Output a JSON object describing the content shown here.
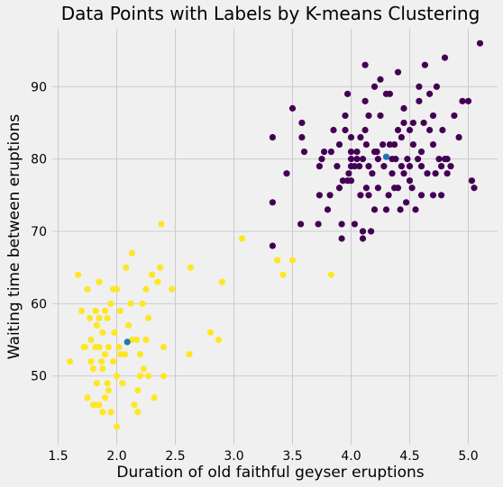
{
  "chart_data": {
    "type": "scatter",
    "title": "Data Points with Labels by K-means Clustering",
    "xlabel": "Duration of old faithful geyser eruptions",
    "ylabel": "Waiting time between eruptions",
    "xlim": [
      1.45,
      5.25
    ],
    "ylim": [
      40.5,
      98
    ],
    "xticks": [
      1.5,
      2.0,
      2.5,
      3.0,
      3.5,
      4.0,
      4.5,
      5.0
    ],
    "xtick_labels": [
      "1.5",
      "2.0",
      "2.5",
      "3.0",
      "3.5",
      "4.0",
      "4.5",
      "5.0"
    ],
    "yticks": [
      50,
      60,
      70,
      80,
      90
    ],
    "ytick_labels": [
      "50",
      "60",
      "70",
      "80",
      "90"
    ],
    "grid": true,
    "series": [
      {
        "color": "#440154",
        "points": [
          [
            3.33,
            83
          ],
          [
            3.33,
            74
          ],
          [
            3.33,
            68
          ],
          [
            3.45,
            78
          ],
          [
            3.5,
            87
          ],
          [
            3.57,
            71
          ],
          [
            3.58,
            83
          ],
          [
            3.58,
            85
          ],
          [
            3.6,
            81
          ],
          [
            3.72,
            71
          ],
          [
            3.73,
            75
          ],
          [
            3.73,
            79
          ],
          [
            3.75,
            80
          ],
          [
            3.77,
            81
          ],
          [
            3.8,
            73
          ],
          [
            3.82,
            75
          ],
          [
            3.83,
            81
          ],
          [
            3.85,
            84
          ],
          [
            3.88,
            79
          ],
          [
            3.9,
            76
          ],
          [
            3.92,
            69
          ],
          [
            3.92,
            71
          ],
          [
            3.93,
            77
          ],
          [
            3.95,
            84
          ],
          [
            3.97,
            89
          ],
          [
            3.98,
            78
          ],
          [
            4.0,
            80
          ],
          [
            4.0,
            77
          ],
          [
            4.0,
            79
          ],
          [
            4.0,
            83
          ],
          [
            4.03,
            71
          ],
          [
            4.03,
            79
          ],
          [
            4.05,
            80
          ],
          [
            4.08,
            75
          ],
          [
            4.1,
            69
          ],
          [
            4.1,
            70
          ],
          [
            4.1,
            80
          ],
          [
            4.12,
            84
          ],
          [
            4.12,
            88
          ],
          [
            4.12,
            93
          ],
          [
            4.13,
            76
          ],
          [
            4.15,
            75
          ],
          [
            4.15,
            86
          ],
          [
            4.17,
            70
          ],
          [
            4.18,
            78
          ],
          [
            4.2,
            90
          ],
          [
            4.2,
            73
          ],
          [
            4.22,
            81
          ],
          [
            4.23,
            76
          ],
          [
            4.25,
            86
          ],
          [
            4.27,
            82
          ],
          [
            4.28,
            79
          ],
          [
            4.3,
            73
          ],
          [
            4.32,
            75
          ],
          [
            4.33,
            82
          ],
          [
            4.35,
            80
          ],
          [
            4.35,
            78
          ],
          [
            4.37,
            82
          ],
          [
            4.38,
            80
          ],
          [
            4.4,
            76
          ],
          [
            4.4,
            84
          ],
          [
            4.42,
            73
          ],
          [
            4.43,
            79
          ],
          [
            4.43,
            83
          ],
          [
            4.45,
            78
          ],
          [
            4.45,
            85
          ],
          [
            4.47,
            74
          ],
          [
            4.48,
            80
          ],
          [
            4.5,
            79
          ],
          [
            4.5,
            84
          ],
          [
            4.52,
            76
          ],
          [
            4.53,
            82
          ],
          [
            4.55,
            73
          ],
          [
            4.57,
            80
          ],
          [
            4.58,
            88
          ],
          [
            4.6,
            75
          ],
          [
            4.6,
            81
          ],
          [
            4.62,
            85
          ],
          [
            4.65,
            78
          ],
          [
            4.67,
            84
          ],
          [
            4.7,
            75
          ],
          [
            4.7,
            82
          ],
          [
            4.72,
            78
          ],
          [
            4.73,
            90
          ],
          [
            4.75,
            80
          ],
          [
            4.77,
            75
          ],
          [
            4.78,
            84
          ],
          [
            4.8,
            80
          ],
          [
            4.8,
            94
          ],
          [
            4.82,
            80
          ],
          [
            4.85,
            79
          ],
          [
            4.88,
            86
          ],
          [
            4.92,
            83
          ],
          [
            4.95,
            88
          ],
          [
            5.0,
            88
          ],
          [
            5.03,
            77
          ],
          [
            5.05,
            76
          ],
          [
            5.1,
            96
          ],
          [
            4.25,
            91
          ],
          [
            4.2,
            81
          ],
          [
            4.07,
            79
          ],
          [
            4.05,
            81
          ],
          [
            3.97,
            77
          ],
          [
            3.9,
            82
          ],
          [
            4.15,
            79
          ],
          [
            4.33,
            89
          ],
          [
            4.37,
            76
          ],
          [
            4.53,
            85
          ],
          [
            4.58,
            90
          ],
          [
            4.67,
            89
          ],
          [
            4.77,
            79
          ],
          [
            4.63,
            93
          ],
          [
            4.4,
            92
          ],
          [
            4.08,
            83
          ],
          [
            3.95,
            86
          ],
          [
            4.23,
            80
          ],
          [
            4.6,
            79
          ],
          [
            4.7,
            86
          ],
          [
            4.82,
            78
          ],
          [
            4.5,
            77
          ],
          [
            4.45,
            87
          ],
          [
            4.3,
            89
          ],
          [
            4.13,
            82
          ],
          [
            4.0,
            81
          ]
        ]
      },
      {
        "color": "#fde725",
        "points": [
          [
            1.6,
            52
          ],
          [
            1.67,
            64
          ],
          [
            1.7,
            59
          ],
          [
            1.73,
            54
          ],
          [
            1.75,
            47
          ],
          [
            1.75,
            62
          ],
          [
            1.77,
            58
          ],
          [
            1.78,
            52
          ],
          [
            1.8,
            46
          ],
          [
            1.8,
            51
          ],
          [
            1.82,
            54
          ],
          [
            1.82,
            59
          ],
          [
            1.83,
            49
          ],
          [
            1.83,
            57
          ],
          [
            1.85,
            46
          ],
          [
            1.85,
            54
          ],
          [
            1.85,
            63
          ],
          [
            1.87,
            52
          ],
          [
            1.88,
            45
          ],
          [
            1.88,
            51
          ],
          [
            1.88,
            56
          ],
          [
            1.9,
            47
          ],
          [
            1.9,
            53
          ],
          [
            1.9,
            59
          ],
          [
            1.92,
            49
          ],
          [
            1.93,
            54
          ],
          [
            1.95,
            45
          ],
          [
            1.95,
            60
          ],
          [
            1.97,
            52
          ],
          [
            1.98,
            56
          ],
          [
            2.0,
            43
          ],
          [
            2.0,
            50
          ],
          [
            2.0,
            62
          ],
          [
            2.02,
            54
          ],
          [
            2.03,
            59
          ],
          [
            2.05,
            49
          ],
          [
            2.07,
            53
          ],
          [
            2.08,
            65
          ],
          [
            2.1,
            57
          ],
          [
            2.12,
            60
          ],
          [
            2.13,
            67
          ],
          [
            2.15,
            46
          ],
          [
            2.17,
            55
          ],
          [
            2.18,
            45
          ],
          [
            2.2,
            50
          ],
          [
            2.2,
            53
          ],
          [
            2.22,
            60
          ],
          [
            2.23,
            51
          ],
          [
            2.25,
            62
          ],
          [
            2.27,
            50
          ],
          [
            2.3,
            64
          ],
          [
            2.32,
            47
          ],
          [
            2.35,
            63
          ],
          [
            2.37,
            65
          ],
          [
            2.38,
            71
          ],
          [
            2.4,
            50
          ],
          [
            2.4,
            54
          ],
          [
            2.47,
            62
          ],
          [
            2.62,
            53
          ],
          [
            2.63,
            65
          ],
          [
            2.8,
            56
          ],
          [
            2.87,
            55
          ],
          [
            2.9,
            63
          ],
          [
            3.07,
            69
          ],
          [
            3.37,
            66
          ],
          [
            3.42,
            64
          ],
          [
            3.5,
            66
          ],
          [
            3.83,
            64
          ],
          [
            1.72,
            54
          ],
          [
            1.78,
            55
          ],
          [
            1.85,
            58
          ],
          [
            1.93,
            48
          ],
          [
            2.03,
            53
          ],
          [
            2.13,
            55
          ],
          [
            2.18,
            48
          ],
          [
            2.27,
            58
          ],
          [
            1.82,
            46
          ],
          [
            1.92,
            58
          ],
          [
            2.25,
            55
          ],
          [
            1.97,
            62
          ]
        ]
      }
    ],
    "centroids": {
      "color": "#1f77b4",
      "points": [
        [
          4.3,
          80.3
        ],
        [
          2.09,
          54.7
        ]
      ]
    }
  }
}
